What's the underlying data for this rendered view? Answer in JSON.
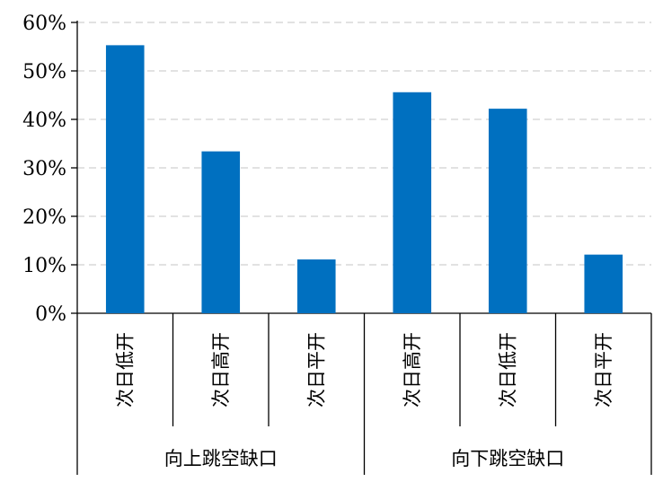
{
  "chart_data": {
    "type": "bar",
    "title": "",
    "xlabel": "",
    "ylabel": "",
    "ylim": [
      0,
      60
    ],
    "yticks": [
      "0%",
      "10%",
      "20%",
      "30%",
      "40%",
      "50%",
      "60%"
    ],
    "grid": true,
    "legend": "none",
    "bar_color": "#0070C0",
    "groups": [
      {
        "name": "向上跳空缺口",
        "categories": [
          "次日低开",
          "次日高开",
          "次日平开"
        ],
        "values": [
          55.3,
          33.4,
          11.1
        ]
      },
      {
        "name": "向下跳空缺口",
        "categories": [
          "次日高开",
          "次日低开",
          "次日平开"
        ],
        "values": [
          45.6,
          42.2,
          12.1
        ]
      }
    ]
  }
}
